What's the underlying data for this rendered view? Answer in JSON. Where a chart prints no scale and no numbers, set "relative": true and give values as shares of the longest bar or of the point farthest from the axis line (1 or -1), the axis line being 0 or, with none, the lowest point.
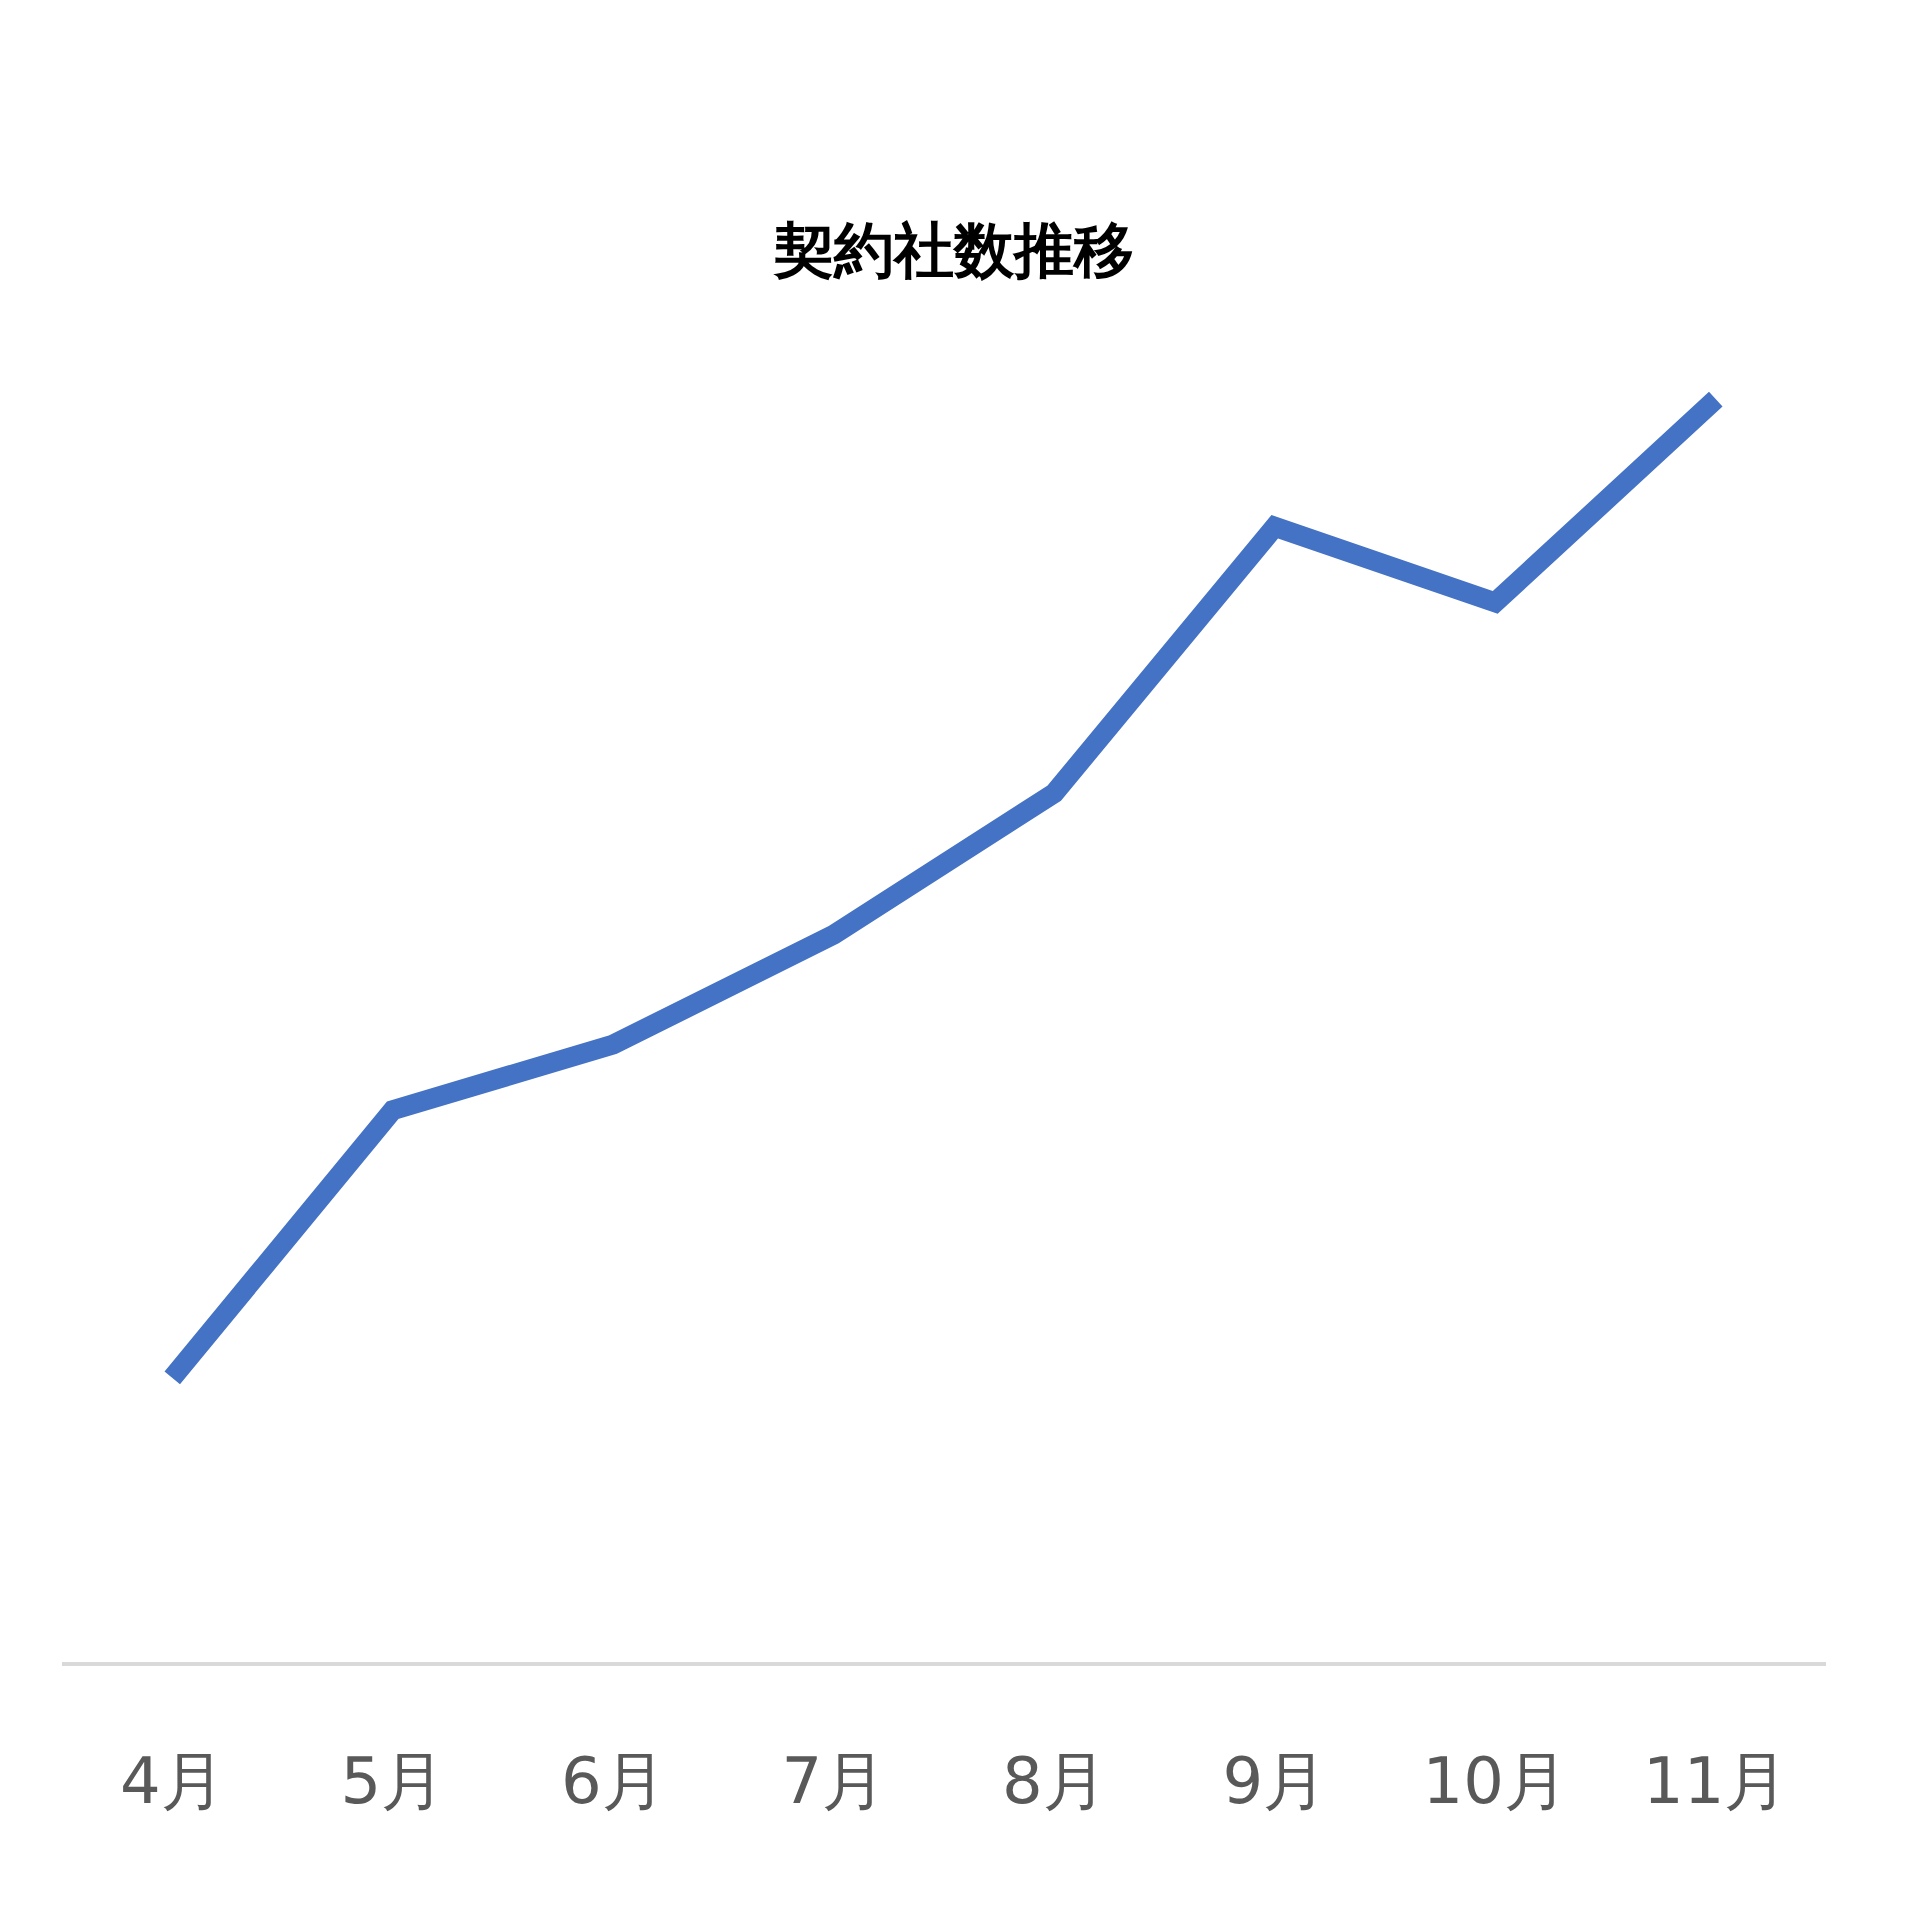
{
  "chart_data": {
    "type": "line",
    "title": "契約社数推移",
    "relative": true,
    "categories": [
      "4月",
      "5月",
      "6月",
      "7月",
      "8月",
      "9月",
      "10月",
      "11月"
    ],
    "series": [
      {
        "color": "#4472c4",
        "values": [
          0.225,
          0.437,
          0.489,
          0.576,
          0.688,
          0.899,
          0.839,
          1
        ]
      }
    ],
    "grid": false,
    "legend": false,
    "marker": "none",
    "line_style": "solid"
  }
}
